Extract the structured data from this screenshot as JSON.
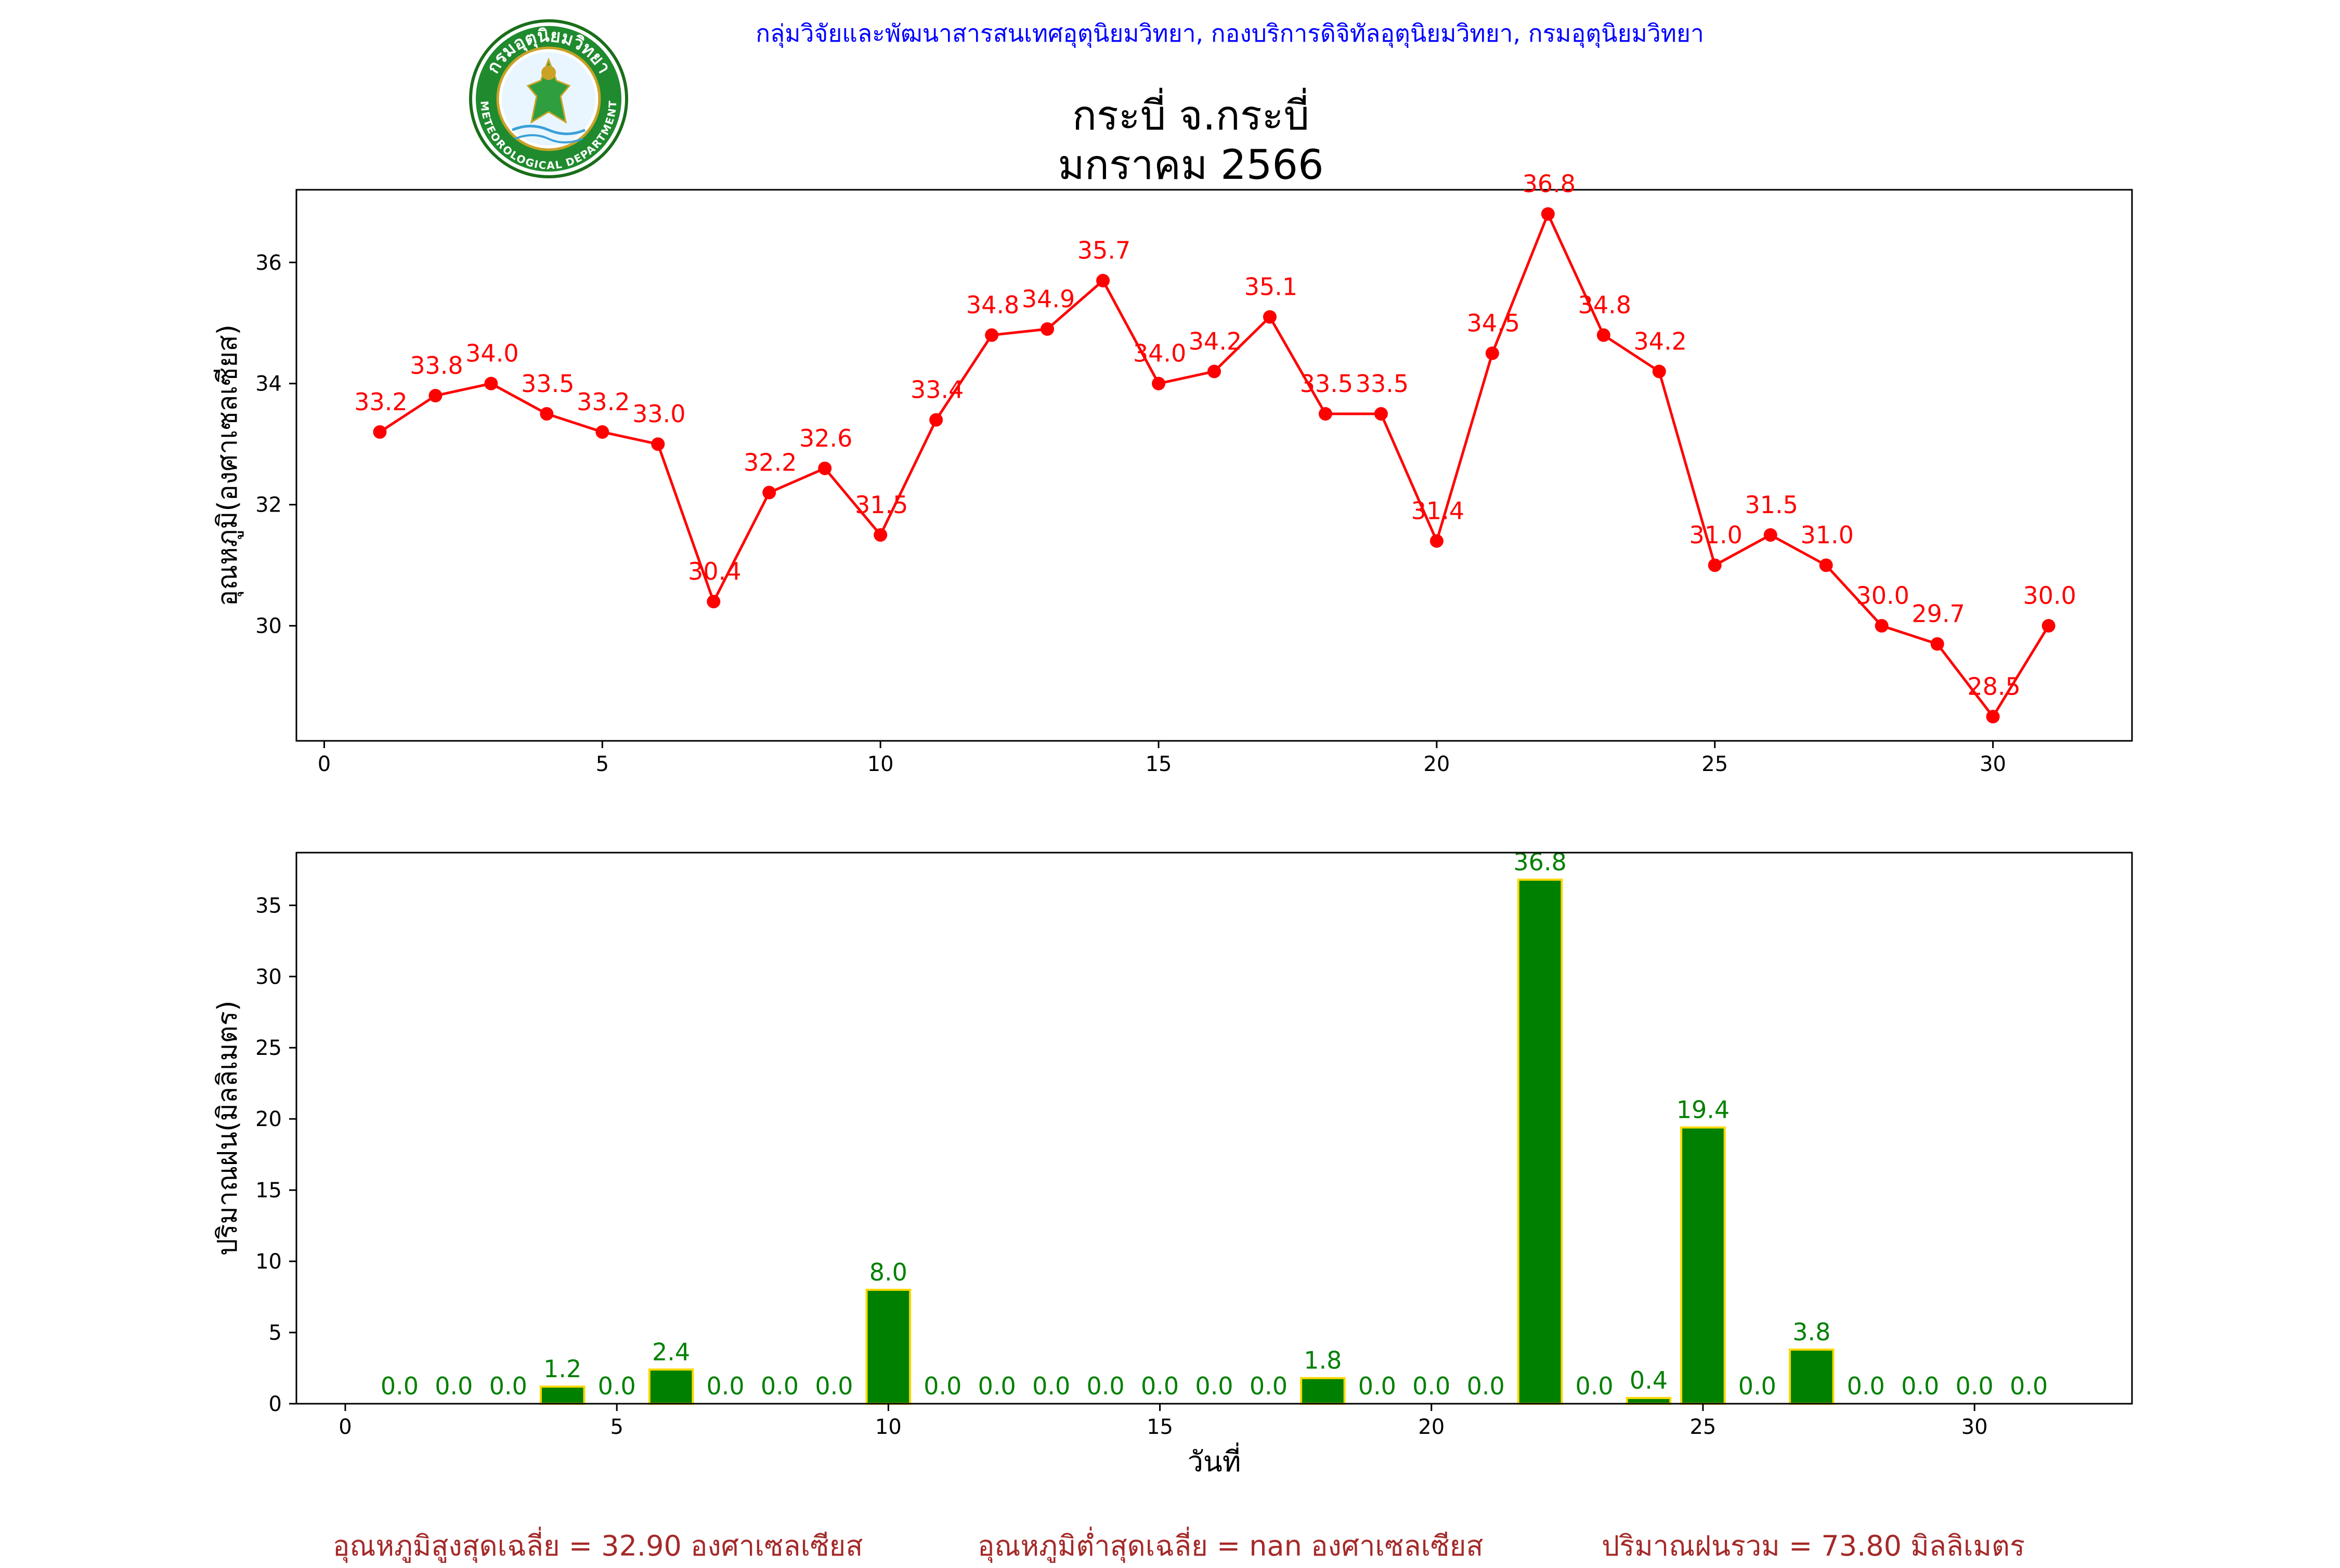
{
  "header": {
    "agency": "กลุ่มวิจัยและพัฒนาสารสนเทศอุตุนิยมวิทยา, กองบริการดิจิทัลอุตุนิยมวิทยา, กรมอุตุนิยมวิทยา",
    "title_line1": "กระบี่ จ.กระบี่",
    "title_line2": "มกราคม 2566",
    "logo_text_top": "กรมอุตุนิยมวิทยา",
    "logo_text_bottom": "METEOROLOGICAL DEPARTMENT"
  },
  "footer": {
    "avg_max": "อุณหภูมิสูงสุดเฉลี่ย = 32.90 องศาเซลเซียส",
    "avg_min": "อุณหภูมิต่ำสุดเฉลี่ย = nan องศาเซลเซียส",
    "total_rain": "ปริมาณฝนรวม = 73.80 มิลลิเมตร"
  },
  "colors": {
    "temp_line": "#ff0000",
    "rain_bar": "#008000",
    "rain_edge": "#ffd700",
    "agency_text": "#0000ff",
    "footer_text": "#a52a2a"
  },
  "chart_data": [
    {
      "type": "line",
      "ylabel": "อุณหภูมิ(องศาเซลเซียส)",
      "xlabel": "",
      "x": [
        1,
        2,
        3,
        4,
        5,
        6,
        7,
        8,
        9,
        10,
        11,
        12,
        13,
        14,
        15,
        16,
        17,
        18,
        19,
        20,
        21,
        22,
        23,
        24,
        25,
        26,
        27,
        28,
        29,
        30,
        31
      ],
      "values": [
        33.2,
        33.8,
        34.0,
        33.5,
        33.2,
        33.0,
        30.4,
        32.2,
        32.6,
        31.5,
        33.4,
        34.8,
        34.9,
        35.7,
        34.0,
        34.2,
        35.1,
        33.5,
        33.5,
        31.4,
        34.5,
        36.8,
        34.8,
        34.2,
        31.0,
        31.5,
        31.0,
        30.0,
        29.7,
        28.5,
        30.0
      ],
      "labels": [
        "33.2",
        "33.8",
        "34.0",
        "33.5",
        "33.2",
        "33.0",
        "30.4",
        "32.2",
        "32.6",
        "31.5",
        "33.4",
        "34.8",
        "34.9",
        "35.7",
        "34.0",
        "34.2",
        "35.1",
        "33.5",
        "33.5",
        "31.4",
        "34.5",
        "36.8",
        "34.8",
        "34.2",
        "31.0",
        "31.5",
        "31.0",
        "30.0",
        "29.7",
        "28.5",
        "30.0"
      ],
      "xlim": [
        -0.5,
        32.5
      ],
      "ylim": [
        28.1,
        37.2
      ],
      "xticks": [
        0,
        5,
        10,
        15,
        20,
        25,
        30
      ],
      "xtick_labels": [
        "0",
        "5",
        "10",
        "15",
        "20",
        "25",
        "30"
      ],
      "yticks": [
        30,
        32,
        34,
        36
      ],
      "ytick_labels": [
        "30",
        "32",
        "34",
        "36"
      ],
      "grid": false
    },
    {
      "type": "bar",
      "ylabel": "ปริมาณฝน(มิลลิเมตร)",
      "xlabel": "วันที่",
      "x": [
        1,
        2,
        3,
        4,
        5,
        6,
        7,
        8,
        9,
        10,
        11,
        12,
        13,
        14,
        15,
        16,
        17,
        18,
        19,
        20,
        21,
        22,
        23,
        24,
        25,
        26,
        27,
        28,
        29,
        30,
        31
      ],
      "values": [
        0.0,
        0.0,
        0.0,
        1.2,
        0.0,
        2.4,
        0.0,
        0.0,
        0.0,
        8.0,
        0.0,
        0.0,
        0.0,
        0.0,
        0.0,
        0.0,
        0.0,
        1.8,
        0.0,
        0.0,
        0.0,
        36.8,
        0.0,
        0.4,
        19.4,
        0.0,
        3.8,
        0.0,
        0.0,
        0.0,
        0.0
      ],
      "labels": [
        "0.0",
        "0.0",
        "0.0",
        "1.2",
        "0.0",
        "2.4",
        "0.0",
        "0.0",
        "0.0",
        "8.0",
        "0.0",
        "0.0",
        "0.0",
        "0.0",
        "0.0",
        "0.0",
        "0.0",
        "1.8",
        "0.0",
        "0.0",
        "0.0",
        "36.8",
        "0.0",
        "0.4",
        "19.4",
        "0.0",
        "3.8",
        "0.0",
        "0.0",
        "0.0",
        "0.0"
      ],
      "xlim": [
        -0.9,
        32.9
      ],
      "ylim": [
        0,
        38.7
      ],
      "xticks": [
        0,
        5,
        10,
        15,
        20,
        25,
        30
      ],
      "xtick_labels": [
        "0",
        "5",
        "10",
        "15",
        "20",
        "25",
        "30"
      ],
      "yticks": [
        0,
        5,
        10,
        15,
        20,
        25,
        30,
        35
      ],
      "ytick_labels": [
        "0",
        "5",
        "10",
        "15",
        "20",
        "25",
        "30",
        "35"
      ],
      "grid": false
    }
  ]
}
